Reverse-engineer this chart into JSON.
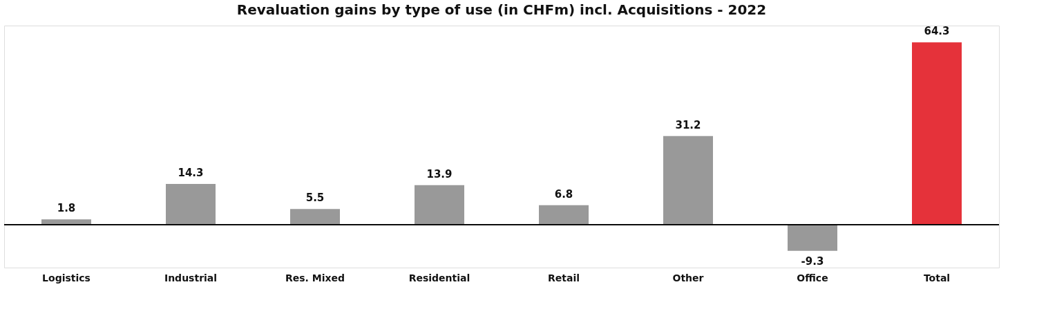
{
  "chart_data": {
    "type": "bar",
    "title": "Revaluation gains by type of use (in CHFm) incl. Acquisitions - 2022",
    "categories": [
      "Logistics",
      "Industrial",
      "Res. Mixed",
      "Residential",
      "Retail",
      "Other",
      "Office",
      "Total"
    ],
    "values": [
      1.8,
      14.3,
      5.5,
      13.9,
      6.8,
      31.2,
      -9.3,
      64.3
    ],
    "colors": [
      "#999999",
      "#999999",
      "#999999",
      "#999999",
      "#999999",
      "#999999",
      "#999999",
      "#e5323a"
    ],
    "data_labels": true
  }
}
